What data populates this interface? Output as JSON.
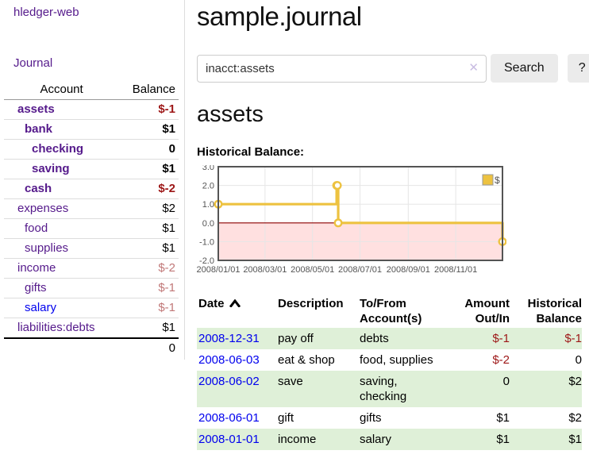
{
  "app": {
    "brand": "hledger-web",
    "nav_journal": "Journal"
  },
  "page": {
    "title": "sample.journal",
    "account_heading": "assets",
    "chart_title": "Historical Balance:"
  },
  "search": {
    "value": "inacct:assets",
    "clear_icon": "✕",
    "button_label": "Search",
    "help_label": "?"
  },
  "sidebar": {
    "headers": {
      "account": "Account",
      "balance": "Balance"
    },
    "accounts": [
      {
        "name": "assets",
        "indent": 1,
        "bold": true,
        "balance": "$-1",
        "negative": "strong"
      },
      {
        "name": "bank",
        "indent": 2,
        "bold": true,
        "balance": "$1"
      },
      {
        "name": "checking",
        "indent": 3,
        "bold": true,
        "balance": "0"
      },
      {
        "name": "saving",
        "indent": 3,
        "bold": true,
        "balance": "$1"
      },
      {
        "name": "cash",
        "indent": 2,
        "bold": true,
        "balance": "$-2",
        "negative": "strong"
      },
      {
        "name": "expenses",
        "indent": 1,
        "bold": false,
        "balance": "$2"
      },
      {
        "name": "food",
        "indent": 2,
        "bold": false,
        "balance": "$1"
      },
      {
        "name": "supplies",
        "indent": 2,
        "bold": false,
        "balance": "$1"
      },
      {
        "name": "income",
        "indent": 1,
        "bold": false,
        "balance": "$-2",
        "negative": "soft"
      },
      {
        "name": "gifts",
        "indent": 2,
        "bold": false,
        "balance": "$-1",
        "negative": "soft"
      },
      {
        "name": "salary",
        "indent": 2,
        "bold": false,
        "balance": "$-1",
        "negative": "soft",
        "link": "blue"
      },
      {
        "name": "liabilities:debts",
        "indent": 1,
        "bold": false,
        "balance": "$1"
      }
    ],
    "total": "0"
  },
  "register": {
    "headers": {
      "date": "Date",
      "description": "Description",
      "account": "To/From Account(s)",
      "amount": "Amount Out/In",
      "balance": "Historical Balance"
    },
    "sort": {
      "column": "date",
      "direction": "asc"
    },
    "rows": [
      {
        "date": "2008-12-31",
        "description": "pay off",
        "accounts": "debts",
        "amount": "$-1",
        "amount_negative": true,
        "balance": "$-1",
        "balance_negative": true
      },
      {
        "date": "2008-06-03",
        "description": "eat & shop",
        "accounts": "food, supplies",
        "amount": "$-2",
        "amount_negative": true,
        "balance": "0",
        "balance_negative": false
      },
      {
        "date": "2008-06-02",
        "description": "save",
        "accounts": "saving, checking",
        "amount": "0",
        "amount_negative": false,
        "balance": "$2",
        "balance_negative": false
      },
      {
        "date": "2008-06-01",
        "description": "gift",
        "accounts": "gifts",
        "amount": "$1",
        "amount_negative": false,
        "balance": "$2",
        "balance_negative": false
      },
      {
        "date": "2008-01-01",
        "description": "income",
        "accounts": "salary",
        "amount": "$1",
        "amount_negative": false,
        "balance": "$1",
        "balance_negative": false
      }
    ]
  },
  "chart_data": {
    "type": "line",
    "title": "Historical Balance:",
    "steps": true,
    "series": [
      {
        "name": "$",
        "color": "#edc240",
        "points": [
          {
            "day": 0,
            "date": "2008-01-01",
            "value": 1
          },
          {
            "day": 152,
            "date": "2008-06-01",
            "value": 2
          },
          {
            "day": 153,
            "date": "2008-06-02",
            "value": 2
          },
          {
            "day": 154,
            "date": "2008-06-03",
            "value": 0
          },
          {
            "day": 365,
            "date": "2008-12-31",
            "value": -1
          }
        ]
      }
    ],
    "x_domain_days": [
      0,
      365
    ],
    "x_ticks": [
      {
        "pos": 0,
        "label": "2008/01/01"
      },
      {
        "pos": 60,
        "label": "2008/03/01"
      },
      {
        "pos": 121,
        "label": "2008/05/01"
      },
      {
        "pos": 182,
        "label": "2008/07/01"
      },
      {
        "pos": 244,
        "label": "2008/09/01"
      },
      {
        "pos": 305,
        "label": "2008/11/01"
      }
    ],
    "y_ticks": [
      3.0,
      2.0,
      1.0,
      0.0,
      -1.0,
      -2.0
    ],
    "ylim": [
      -2,
      3
    ],
    "grid": true,
    "legend": {
      "label": "$",
      "position": "top-right"
    },
    "colors": {
      "line": "#edc240",
      "marker_fill": "#ffffff",
      "grid": "#e6e6e6",
      "border": "#545454",
      "tick_text": "#545454",
      "zero_line": "#8b0000",
      "negative_region": "rgba(255,0,0,0.12)"
    }
  },
  "colors": {
    "link_purple": "#551a8b",
    "link_blue": "#0000ee",
    "negative_strong": "#9d1717",
    "negative_soft": "#c17878",
    "row_green": "#dff0d8"
  }
}
